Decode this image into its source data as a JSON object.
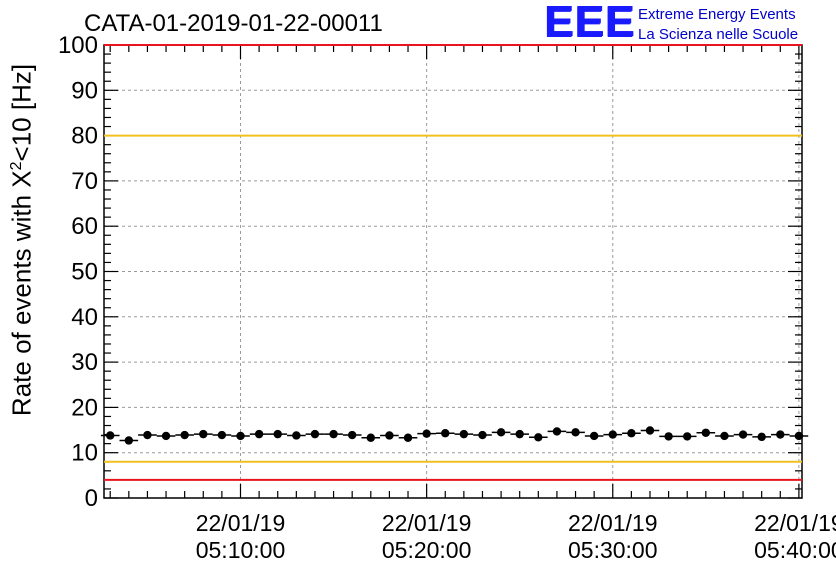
{
  "header": {
    "run_title": "CATA-01-2019-01-22-00011"
  },
  "logo": {
    "mark": "EEE",
    "line1": "Extreme Energy Events",
    "line2": "La Scienza nelle Scuole"
  },
  "axis": {
    "ylabel_prefix": "Rate of events with ",
    "ylabel_symbol": "X",
    "ylabel_sup": "2",
    "ylabel_suffix": "<10 [Hz]"
  },
  "chart_data": {
    "type": "scatter",
    "title": "CATA-01-2019-01-22-00011",
    "ylabel": "Rate of events with X²<10 [Hz]",
    "ylim": [
      0,
      100
    ],
    "yticks": [
      0,
      10,
      20,
      30,
      40,
      50,
      60,
      70,
      80,
      90,
      100
    ],
    "xlim": [
      "05:02:40",
      "05:40:10"
    ],
    "xticks": [
      {
        "date": "22/01/19",
        "time": "05:10:00"
      },
      {
        "date": "22/01/19",
        "time": "05:20:00"
      },
      {
        "date": "22/01/19",
        "time": "05:30:00"
      },
      {
        "date": "22/01/19",
        "time": "05:40:00"
      }
    ],
    "grid": true,
    "reference_lines": [
      {
        "y": 80,
        "color": "#f0c020"
      },
      {
        "y": 8,
        "color": "#f0c020"
      },
      {
        "y": 100,
        "color": "#e8141e"
      },
      {
        "y": 4,
        "color": "#e8141e"
      }
    ],
    "series": [
      {
        "x": [
          "05:03:00",
          "05:04:00",
          "05:05:00",
          "05:06:00",
          "05:07:00",
          "05:08:00",
          "05:09:00",
          "05:10:00",
          "05:11:00",
          "05:12:00",
          "05:13:00",
          "05:14:00",
          "05:15:00",
          "05:16:00",
          "05:17:00",
          "05:18:00",
          "05:19:00",
          "05:20:00",
          "05:21:00",
          "05:22:00",
          "05:23:00",
          "05:24:00",
          "05:25:00",
          "05:26:00",
          "05:27:00",
          "05:28:00",
          "05:29:00",
          "05:30:00",
          "05:31:00",
          "05:32:00",
          "05:33:00",
          "05:34:00",
          "05:35:00",
          "05:36:00",
          "05:37:00",
          "05:38:00",
          "05:39:00",
          "05:40:00"
        ],
        "values": [
          13.8,
          12.7,
          13.9,
          13.7,
          13.9,
          14.1,
          13.9,
          13.7,
          14.1,
          14.1,
          13.8,
          14.1,
          14.1,
          13.9,
          13.3,
          13.8,
          13.3,
          14.2,
          14.3,
          14.1,
          13.9,
          14.5,
          14.1,
          13.4,
          14.7,
          14.5,
          13.7,
          14.0,
          14.3,
          14.9,
          13.6,
          13.6,
          14.4,
          13.7,
          14.0,
          13.5,
          14.0,
          13.7
        ]
      }
    ]
  }
}
